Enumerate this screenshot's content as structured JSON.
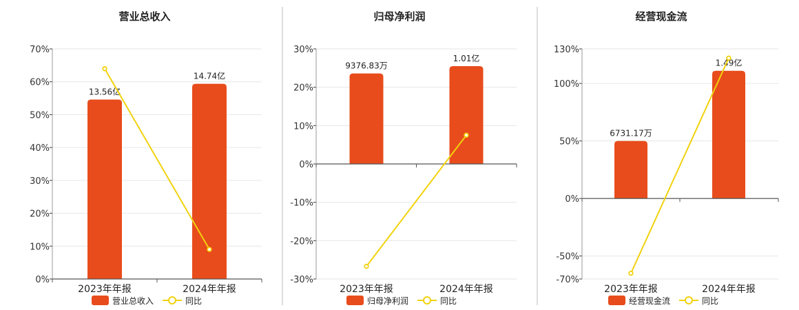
{
  "colors": {
    "bar": "#e84c1c",
    "line": "#f1d20d",
    "grid": "#e6e6e6",
    "axis": "#333333",
    "divider": "#bbbbbb"
  },
  "chart_data": [
    {
      "type": "bar",
      "title": "营业总收入",
      "categories": [
        "2023年年报",
        "2024年年报"
      ],
      "ylim": [
        0,
        70
      ],
      "yticks": [
        0,
        10,
        20,
        30,
        40,
        50,
        60,
        70
      ],
      "ytick_labels": [
        "0%",
        "10%",
        "20%",
        "30%",
        "40%",
        "50%",
        "60%",
        "70%"
      ],
      "series": [
        {
          "name": "营业总收入",
          "type": "bar",
          "values": [
            54.6,
            59.4
          ],
          "labels": [
            "13.56亿",
            "14.74亿"
          ]
        },
        {
          "name": "同比",
          "type": "line",
          "values": [
            64,
            9
          ]
        }
      ],
      "legend": "bottom-center"
    },
    {
      "type": "bar",
      "title": "归母净利润",
      "categories": [
        "2023年年报",
        "2024年年报"
      ],
      "ylim": [
        -30,
        30
      ],
      "yticks": [
        -30,
        -20,
        -10,
        0,
        10,
        20,
        30
      ],
      "ytick_labels": [
        "-30%",
        "-20%",
        "-10%",
        "0%",
        "10%",
        "20%",
        "30%"
      ],
      "series": [
        {
          "name": "归母净利润",
          "type": "bar",
          "values": [
            23.6,
            25.5
          ],
          "labels": [
            "9376.83万",
            "1.01亿"
          ]
        },
        {
          "name": "同比",
          "type": "line",
          "values": [
            -26.7,
            7.5
          ]
        }
      ],
      "legend": "bottom-center"
    },
    {
      "type": "bar",
      "title": "经营现金流",
      "categories": [
        "2023年年报",
        "2024年年报"
      ],
      "ylim": [
        -70,
        130
      ],
      "yticks": [
        -70,
        -50,
        0,
        50,
        100,
        130
      ],
      "ytick_labels": [
        "-70%",
        "-50%",
        "0%",
        "50%",
        "100%",
        "130%"
      ],
      "series": [
        {
          "name": "经营现金流",
          "type": "bar",
          "values": [
            50,
            111
          ],
          "labels": [
            "6731.17万",
            "1.49亿"
          ]
        },
        {
          "name": "同比",
          "type": "line",
          "values": [
            -65,
            122
          ]
        }
      ],
      "legend": "bottom-center"
    }
  ]
}
